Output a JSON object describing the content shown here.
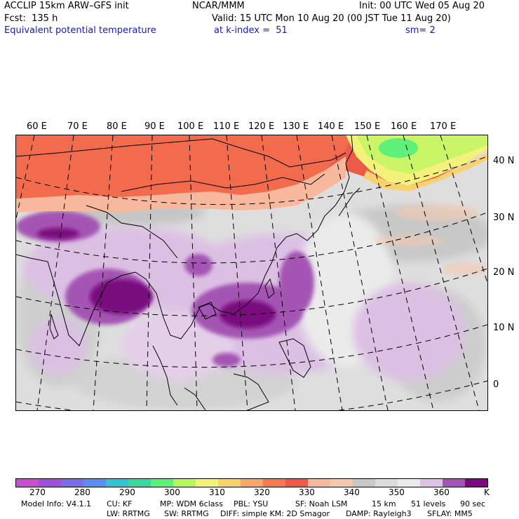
{
  "header": {
    "model_title": "ACCLIP 15km ARW–GFS init",
    "org": "NCAR/MMM",
    "init": "Init: 00 UTC Wed 05 Aug 20",
    "fcst": "Fcst:  135 h",
    "valid": "Valid: 15 UTC Mon 10 Aug 20 (00 JST Tue 11 Aug 20)",
    "field": "Equivalent potential temperature",
    "level": "at k-index =  51",
    "smooth": "sm= 2"
  },
  "map": {
    "lon_labels": [
      "60 E",
      "70 E",
      "80 E",
      "90 E",
      "100 E",
      "110 E",
      "120 E",
      "130 E",
      "140 E",
      "150 E",
      "160 E",
      "170 E"
    ],
    "lat_labels": [
      "40 N",
      "30 N",
      "20 N",
      "10 N",
      "0"
    ]
  },
  "colorbar": {
    "colors": [
      "#c84fcf",
      "#a050d8",
      "#7b6de6",
      "#5a8ff0",
      "#35c2d0",
      "#3ad9a0",
      "#5ff07a",
      "#b6f75e",
      "#f4f27a",
      "#f8d26e",
      "#f7a868",
      "#f57a52",
      "#ee5a48",
      "#f7b89d",
      "#f4c9b0",
      "#c8c8c8",
      "#dcdcdc",
      "#ebebeb",
      "#dfc3e6",
      "#a454b4",
      "#7a0a7e"
    ],
    "ticks": [
      "270",
      "280",
      "290",
      "300",
      "310",
      "320",
      "330",
      "340",
      "350",
      "360"
    ],
    "unit": "K"
  },
  "footer": {
    "model_info": "Model Info: V4.1.1",
    "cu": "CU: KF",
    "mp": "MP: WDM 6class",
    "pbl": "PBL: YSU",
    "sf": "SF: Noah LSM",
    "res": "15 km",
    "levels": "51 levels",
    "dt": "90 sec",
    "lw": "LW: RRTMG",
    "sw": "SW: RRTMG",
    "diff": "DIFF: simple KM: 2D Smagor",
    "damp": "DAMP: Rayleigh3",
    "sflay": "SFLAY: MM5"
  }
}
